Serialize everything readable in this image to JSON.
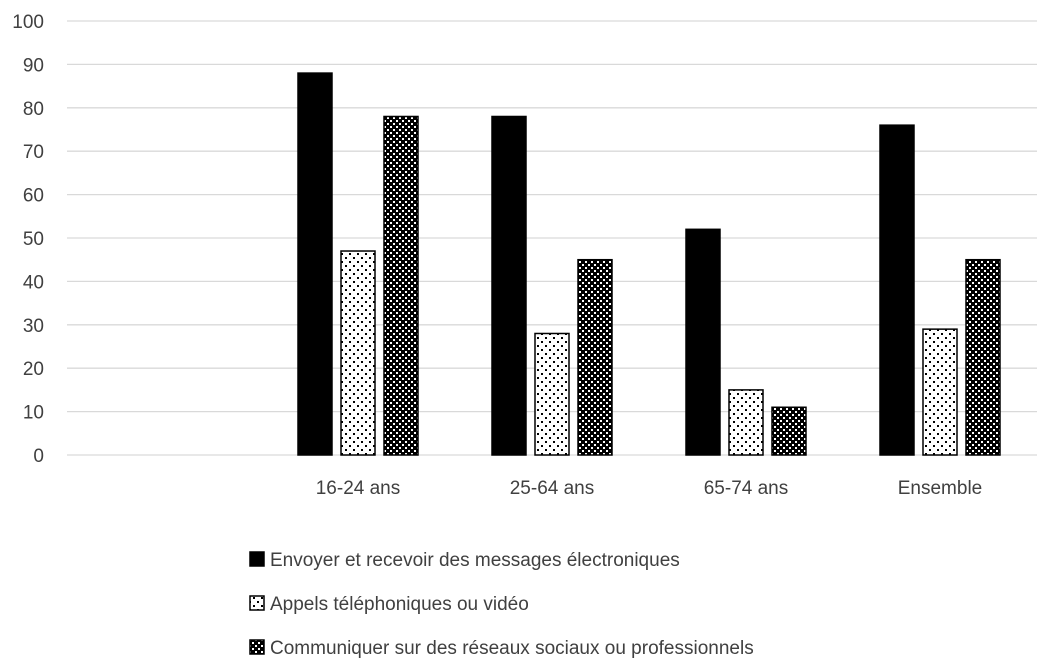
{
  "chart_data": {
    "type": "bar",
    "categories": [
      "",
      "16-24 ans",
      "25-64 ans",
      "65-74 ans",
      "Ensemble"
    ],
    "series": [
      {
        "name": "Envoyer et recevoir des messages électroniques",
        "values": [
          null,
          88,
          78,
          52,
          76
        ],
        "pattern": "solid"
      },
      {
        "name": "Appels téléphoniques ou vidéo",
        "values": [
          null,
          47,
          28,
          15,
          29
        ],
        "pattern": "dots"
      },
      {
        "name": "Communiquer sur des réseaux sociaux ou professionnels",
        "values": [
          null,
          78,
          45,
          11,
          45
        ],
        "pattern": "checker"
      }
    ],
    "y_ticks": [
      "0",
      "10",
      "20",
      "30",
      "40",
      "50",
      "60",
      "70",
      "80",
      "90",
      "100"
    ],
    "ylim": [
      0,
      100
    ],
    "title": "",
    "xlabel": "",
    "ylabel": "",
    "grid": true,
    "legend_position": "bottom",
    "colors": {
      "bar": "#000000",
      "fill_light": "#ffffff",
      "grid": "#d9d9d9",
      "text": "#404040"
    }
  }
}
